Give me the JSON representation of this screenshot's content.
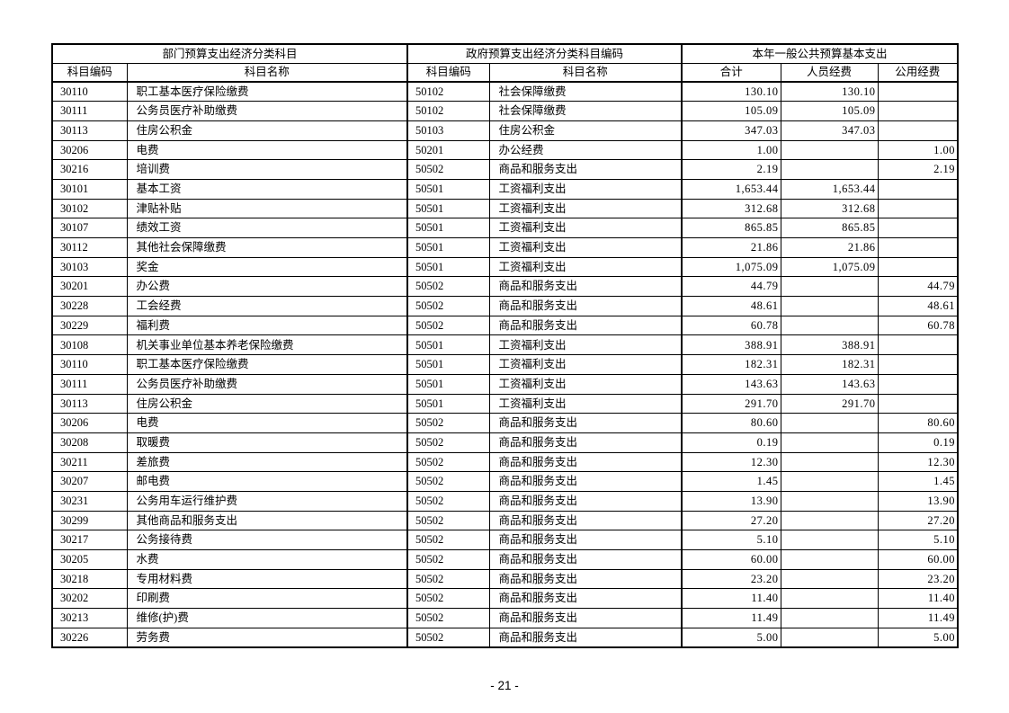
{
  "page": {
    "number_label": "- 21 -"
  },
  "table": {
    "group_headers": [
      {
        "label": "部门预算支出经济分类科目",
        "colspan": 2
      },
      {
        "label": "政府预算支出经济分类科目编码",
        "colspan": 2
      },
      {
        "label": "本年一般公共预算基本支出",
        "colspan": 3
      }
    ],
    "column_headers": [
      "科目编码",
      "科目名称",
      "科目编码",
      "科目名称",
      "合计",
      "人员经费",
      "公用经费"
    ],
    "rows": [
      [
        "30110",
        "职工基本医疗保险缴费",
        "50102",
        "社会保障缴费",
        "130.10",
        "130.10",
        ""
      ],
      [
        "30111",
        "公务员医疗补助缴费",
        "50102",
        "社会保障缴费",
        "105.09",
        "105.09",
        ""
      ],
      [
        "30113",
        "住房公积金",
        "50103",
        "住房公积金",
        "347.03",
        "347.03",
        ""
      ],
      [
        "30206",
        "电费",
        "50201",
        "办公经费",
        "1.00",
        "",
        "1.00"
      ],
      [
        "30216",
        "培训费",
        "50502",
        "商品和服务支出",
        "2.19",
        "",
        "2.19"
      ],
      [
        "30101",
        "基本工资",
        "50501",
        "工资福利支出",
        "1,653.44",
        "1,653.44",
        ""
      ],
      [
        "30102",
        "津贴补贴",
        "50501",
        "工资福利支出",
        "312.68",
        "312.68",
        ""
      ],
      [
        "30107",
        "绩效工资",
        "50501",
        "工资福利支出",
        "865.85",
        "865.85",
        ""
      ],
      [
        "30112",
        "其他社会保障缴费",
        "50501",
        "工资福利支出",
        "21.86",
        "21.86",
        ""
      ],
      [
        "30103",
        "奖金",
        "50501",
        "工资福利支出",
        "1,075.09",
        "1,075.09",
        ""
      ],
      [
        "30201",
        "办公费",
        "50502",
        "商品和服务支出",
        "44.79",
        "",
        "44.79"
      ],
      [
        "30228",
        "工会经费",
        "50502",
        "商品和服务支出",
        "48.61",
        "",
        "48.61"
      ],
      [
        "30229",
        "福利费",
        "50502",
        "商品和服务支出",
        "60.78",
        "",
        "60.78"
      ],
      [
        "30108",
        "机关事业单位基本养老保险缴费",
        "50501",
        "工资福利支出",
        "388.91",
        "388.91",
        ""
      ],
      [
        "30110",
        "职工基本医疗保险缴费",
        "50501",
        "工资福利支出",
        "182.31",
        "182.31",
        ""
      ],
      [
        "30111",
        "公务员医疗补助缴费",
        "50501",
        "工资福利支出",
        "143.63",
        "143.63",
        ""
      ],
      [
        "30113",
        "住房公积金",
        "50501",
        "工资福利支出",
        "291.70",
        "291.70",
        ""
      ],
      [
        "30206",
        "电费",
        "50502",
        "商品和服务支出",
        "80.60",
        "",
        "80.60"
      ],
      [
        "30208",
        "取暖费",
        "50502",
        "商品和服务支出",
        "0.19",
        "",
        "0.19"
      ],
      [
        "30211",
        "差旅费",
        "50502",
        "商品和服务支出",
        "12.30",
        "",
        "12.30"
      ],
      [
        "30207",
        "邮电费",
        "50502",
        "商品和服务支出",
        "1.45",
        "",
        "1.45"
      ],
      [
        "30231",
        "公务用车运行维护费",
        "50502",
        "商品和服务支出",
        "13.90",
        "",
        "13.90"
      ],
      [
        "30299",
        "其他商品和服务支出",
        "50502",
        "商品和服务支出",
        "27.20",
        "",
        "27.20"
      ],
      [
        "30217",
        "公务接待费",
        "50502",
        "商品和服务支出",
        "5.10",
        "",
        "5.10"
      ],
      [
        "30205",
        "水费",
        "50502",
        "商品和服务支出",
        "60.00",
        "",
        "60.00"
      ],
      [
        "30218",
        "专用材料费",
        "50502",
        "商品和服务支出",
        "23.20",
        "",
        "23.20"
      ],
      [
        "30202",
        "印刷费",
        "50502",
        "商品和服务支出",
        "11.40",
        "",
        "11.40"
      ],
      [
        "30213",
        "维修(护)费",
        "50502",
        "商品和服务支出",
        "11.49",
        "",
        "11.49"
      ],
      [
        "30226",
        "劳务费",
        "50502",
        "商品和服务支出",
        "5.00",
        "",
        "5.00"
      ]
    ]
  }
}
